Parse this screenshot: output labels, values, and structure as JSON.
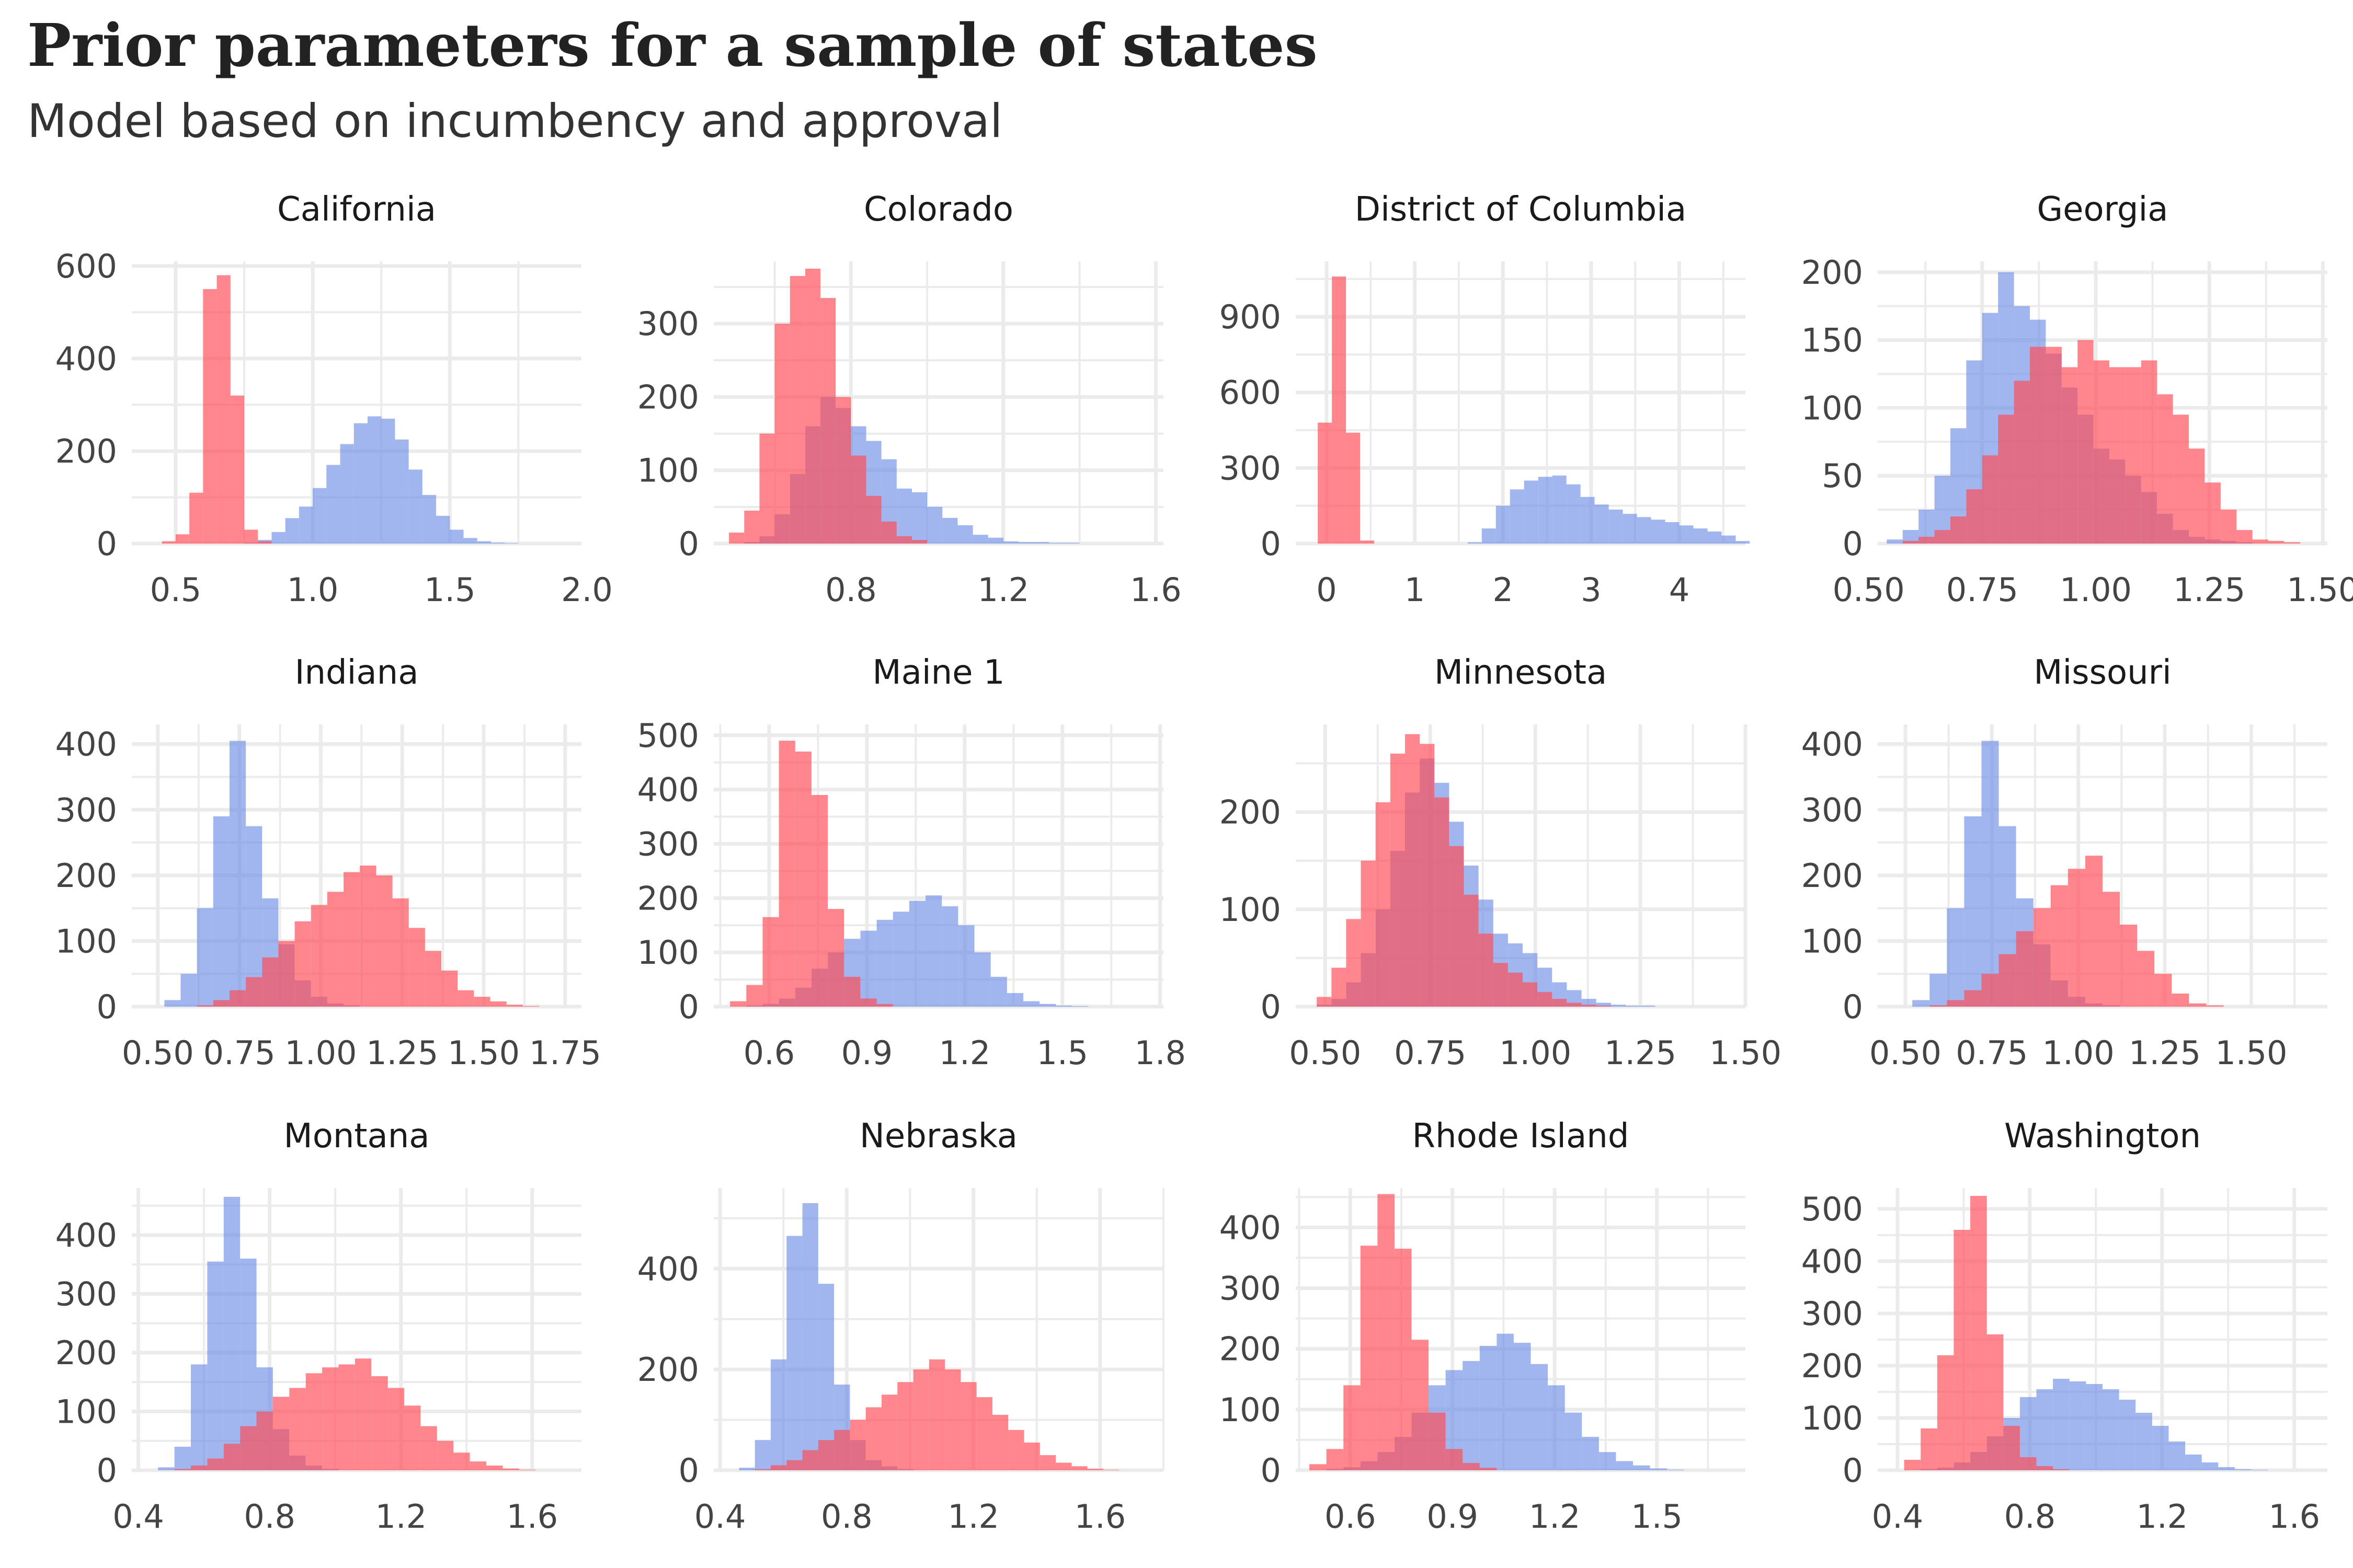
{
  "page": {
    "title": "Prior parameters for a sample of states",
    "subtitle": "Model based on incumbency and approval"
  },
  "colors": {
    "blue": "#6e8ee6",
    "red": "#ff4d55",
    "overlap": "#c33a5f"
  },
  "chart_data": [
    {
      "type": "histogram",
      "title": "California",
      "xlim": [
        0.34,
        1.98
      ],
      "ylim": [
        0,
        610
      ],
      "x_ticks": [
        0.5,
        1.0,
        1.5,
        2.0
      ],
      "x_tick_labels": [
        "0.5",
        "1.0",
        "1.5",
        "2.0"
      ],
      "y_ticks": [
        0,
        200,
        400,
        600
      ],
      "y_tick_labels": [
        "0",
        "200",
        "400",
        "600"
      ],
      "series": [
        {
          "color": "blue",
          "bin_start": 0.45,
          "bin_width": 0.05,
          "values": [
            0,
            0,
            0,
            0,
            0,
            0,
            2,
            8,
            25,
            55,
            80,
            120,
            170,
            215,
            260,
            275,
            270,
            225,
            160,
            105,
            60,
            30,
            12,
            5,
            2,
            1,
            0,
            0,
            0,
            0
          ]
        },
        {
          "color": "red",
          "bin_start": 0.45,
          "bin_width": 0.05,
          "values": [
            5,
            20,
            110,
            550,
            580,
            320,
            30,
            5,
            0,
            0,
            0,
            0,
            0,
            0,
            0,
            0,
            0,
            0,
            0,
            0,
            0,
            0,
            0,
            0,
            0,
            0,
            0,
            0,
            0,
            0
          ]
        }
      ]
    },
    {
      "type": "histogram",
      "title": "Colorado",
      "xlim": [
        0.44,
        1.62
      ],
      "ylim": [
        0,
        385
      ],
      "x_ticks": [
        0.8,
        1.2,
        1.6
      ],
      "x_tick_labels": [
        "0.8",
        "1.2",
        "1.6"
      ],
      "y_ticks": [
        0,
        100,
        200,
        300
      ],
      "y_tick_labels": [
        "0",
        "100",
        "200",
        "300"
      ],
      "series": [
        {
          "color": "blue",
          "bin_start": 0.48,
          "bin_width": 0.04,
          "values": [
            0,
            2,
            10,
            40,
            95,
            160,
            200,
            185,
            160,
            140,
            115,
            75,
            70,
            50,
            35,
            25,
            12,
            8,
            3,
            2,
            2,
            1,
            1,
            0,
            0,
            0
          ]
        },
        {
          "color": "red",
          "bin_start": 0.48,
          "bin_width": 0.04,
          "values": [
            15,
            45,
            150,
            300,
            365,
            375,
            335,
            200,
            120,
            65,
            30,
            10,
            5,
            0,
            0,
            0,
            0,
            0,
            0,
            0,
            0,
            0,
            0,
            0,
            0,
            0
          ]
        }
      ]
    },
    {
      "type": "histogram",
      "title": "District of Columbia",
      "xlim": [
        -0.35,
        4.75
      ],
      "ylim": [
        0,
        1120
      ],
      "x_ticks": [
        0,
        1,
        2,
        3,
        4
      ],
      "x_tick_labels": [
        "0",
        "1",
        "2",
        "3",
        "4"
      ],
      "y_ticks": [
        0,
        300,
        600,
        900
      ],
      "y_tick_labels": [
        "0",
        "300",
        "600",
        "900"
      ],
      "series": [
        {
          "color": "blue",
          "bin_start": 1.6,
          "bin_width": 0.16,
          "values": [
            5,
            60,
            150,
            215,
            250,
            265,
            270,
            235,
            185,
            155,
            135,
            118,
            105,
            95,
            85,
            72,
            60,
            48,
            32,
            10
          ]
        },
        {
          "color": "red",
          "bin_start": -0.1,
          "bin_width": 0.16,
          "values": [
            480,
            1060,
            440,
            12
          ]
        }
      ]
    },
    {
      "type": "histogram",
      "title": "Georgia",
      "xlim": [
        0.52,
        1.51
      ],
      "ylim": [
        0,
        208
      ],
      "x_ticks": [
        0.5,
        0.75,
        1.0,
        1.25,
        1.5
      ],
      "x_tick_labels": [
        "0.50",
        "0.75",
        "1.00",
        "1.25",
        "1.50"
      ],
      "y_ticks": [
        0,
        50,
        100,
        150,
        200
      ],
      "y_tick_labels": [
        "0",
        "50",
        "100",
        "150",
        "200"
      ],
      "series": [
        {
          "color": "blue",
          "bin_start": 0.54,
          "bin_width": 0.035,
          "values": [
            3,
            10,
            25,
            50,
            85,
            135,
            170,
            200,
            175,
            165,
            140,
            115,
            95,
            70,
            62,
            50,
            38,
            22,
            10,
            5,
            3,
            2,
            1,
            0,
            0,
            0,
            0
          ]
        },
        {
          "color": "red",
          "bin_start": 0.54,
          "bin_width": 0.035,
          "values": [
            0,
            2,
            5,
            10,
            20,
            40,
            65,
            95,
            120,
            145,
            145,
            130,
            150,
            135,
            130,
            130,
            135,
            110,
            95,
            70,
            45,
            25,
            10,
            3,
            2,
            1,
            0
          ]
        }
      ]
    },
    {
      "type": "histogram",
      "title": "Indiana",
      "xlim": [
        0.42,
        1.8
      ],
      "ylim": [
        0,
        430
      ],
      "x_ticks": [
        0.5,
        0.75,
        1.0,
        1.25,
        1.5,
        1.75
      ],
      "x_tick_labels": [
        "0.50",
        "0.75",
        "1.00",
        "1.25",
        "1.50",
        "1.75"
      ],
      "y_ticks": [
        0,
        100,
        200,
        300,
        400
      ],
      "y_tick_labels": [
        "0",
        "100",
        "200",
        "300",
        "400"
      ],
      "series": [
        {
          "color": "blue",
          "bin_start": 0.52,
          "bin_width": 0.05,
          "values": [
            10,
            50,
            150,
            290,
            405,
            275,
            165,
            95,
            40,
            15,
            5,
            2,
            0,
            0,
            0,
            0,
            0,
            0,
            0,
            0,
            0,
            0,
            0,
            0
          ]
        },
        {
          "color": "red",
          "bin_start": 0.52,
          "bin_width": 0.05,
          "values": [
            0,
            0,
            2,
            10,
            25,
            45,
            75,
            100,
            130,
            155,
            175,
            205,
            215,
            200,
            165,
            120,
            85,
            55,
            25,
            15,
            8,
            3,
            1,
            0
          ]
        }
      ]
    },
    {
      "type": "histogram",
      "title": "Maine 1",
      "xlim": [
        0.43,
        1.81
      ],
      "ylim": [
        0,
        520
      ],
      "x_ticks": [
        0.6,
        0.9,
        1.2,
        1.5,
        1.8
      ],
      "x_tick_labels": [
        "0.6",
        "0.9",
        "1.2",
        "1.5",
        "1.8"
      ],
      "y_ticks": [
        0,
        100,
        200,
        300,
        400,
        500
      ],
      "y_tick_labels": [
        "0",
        "100",
        "200",
        "300",
        "400",
        "500"
      ],
      "series": [
        {
          "color": "blue",
          "bin_start": 0.48,
          "bin_width": 0.05,
          "values": [
            0,
            2,
            5,
            15,
            35,
            70,
            100,
            125,
            140,
            160,
            175,
            195,
            205,
            185,
            150,
            100,
            55,
            25,
            10,
            5,
            2,
            1,
            0,
            0,
            0,
            0
          ]
        },
        {
          "color": "red",
          "bin_start": 0.48,
          "bin_width": 0.05,
          "values": [
            10,
            40,
            165,
            490,
            470,
            390,
            180,
            55,
            15,
            5,
            0,
            0,
            0,
            0,
            0,
            0,
            0,
            0,
            0,
            0,
            0,
            0,
            0,
            0,
            0,
            0
          ]
        }
      ]
    },
    {
      "type": "histogram",
      "title": "Minnesota",
      "xlim": [
        0.43,
        1.5
      ],
      "ylim": [
        0,
        290
      ],
      "x_ticks": [
        0.5,
        0.75,
        1.0,
        1.25,
        1.5
      ],
      "x_tick_labels": [
        "0.50",
        "0.75",
        "1.00",
        "1.25",
        "1.50"
      ],
      "y_ticks": [
        0,
        100,
        200
      ],
      "y_tick_labels": [
        "0",
        "100",
        "200"
      ],
      "series": [
        {
          "color": "blue",
          "bin_start": 0.48,
          "bin_width": 0.035,
          "values": [
            2,
            8,
            25,
            55,
            100,
            160,
            220,
            255,
            230,
            190,
            145,
            110,
            75,
            65,
            55,
            40,
            25,
            17,
            8,
            4,
            2,
            1,
            1,
            0,
            0,
            0,
            0,
            0
          ]
        },
        {
          "color": "red",
          "bin_start": 0.48,
          "bin_width": 0.035,
          "values": [
            10,
            40,
            90,
            150,
            210,
            260,
            280,
            270,
            215,
            165,
            115,
            75,
            45,
            35,
            25,
            15,
            8,
            4,
            2,
            1,
            0,
            0,
            0,
            0,
            0,
            0,
            0,
            0
          ]
        }
      ]
    },
    {
      "type": "histogram",
      "title": "Missouri",
      "xlim": [
        0.42,
        1.72
      ],
      "ylim": [
        0,
        430
      ],
      "x_ticks": [
        0.5,
        0.75,
        1.0,
        1.25,
        1.5
      ],
      "x_tick_labels": [
        "0.50",
        "0.75",
        "1.00",
        "1.25",
        "1.50"
      ],
      "y_ticks": [
        0,
        100,
        200,
        300,
        400
      ],
      "y_tick_labels": [
        "0",
        "100",
        "200",
        "300",
        "400"
      ],
      "series": [
        {
          "color": "blue",
          "bin_start": 0.52,
          "bin_width": 0.05,
          "values": [
            10,
            50,
            150,
            290,
            405,
            275,
            165,
            95,
            40,
            15,
            5,
            2,
            0,
            0,
            0,
            0,
            0,
            0,
            0,
            0,
            0,
            0
          ]
        },
        {
          "color": "red",
          "bin_start": 0.52,
          "bin_width": 0.05,
          "values": [
            0,
            2,
            10,
            25,
            50,
            80,
            115,
            150,
            185,
            210,
            230,
            175,
            125,
            85,
            50,
            20,
            5,
            2,
            0,
            0,
            0,
            0
          ]
        }
      ]
    },
    {
      "type": "histogram",
      "title": "Montana",
      "xlim": [
        0.38,
        1.75
      ],
      "ylim": [
        0,
        480
      ],
      "x_ticks": [
        0.4,
        0.8,
        1.2,
        1.6
      ],
      "x_tick_labels": [
        "0.4",
        "0.8",
        "1.2",
        "1.6"
      ],
      "y_ticks": [
        0,
        100,
        200,
        300,
        400
      ],
      "y_tick_labels": [
        "0",
        "100",
        "200",
        "300",
        "400"
      ],
      "series": [
        {
          "color": "blue",
          "bin_start": 0.46,
          "bin_width": 0.05,
          "values": [
            5,
            40,
            180,
            355,
            465,
            360,
            175,
            70,
            25,
            8,
            2,
            0,
            0,
            0,
            0,
            0,
            0,
            0,
            0,
            0,
            0,
            0,
            0,
            0,
            0,
            0
          ]
        },
        {
          "color": "red",
          "bin_start": 0.46,
          "bin_width": 0.05,
          "values": [
            0,
            2,
            8,
            20,
            45,
            75,
            100,
            125,
            140,
            165,
            175,
            180,
            190,
            160,
            140,
            110,
            75,
            50,
            30,
            15,
            8,
            3,
            1,
            0,
            0,
            0
          ]
        }
      ]
    },
    {
      "type": "histogram",
      "title": "Nebraska",
      "xlim": [
        0.38,
        1.8
      ],
      "ylim": [
        0,
        560
      ],
      "x_ticks": [
        0.4,
        0.8,
        1.2,
        1.6
      ],
      "x_tick_labels": [
        "0.4",
        "0.8",
        "1.2",
        "1.6"
      ],
      "y_ticks": [
        0,
        200,
        400
      ],
      "y_tick_labels": [
        "0",
        "200",
        "400"
      ],
      "series": [
        {
          "color": "blue",
          "bin_start": 0.46,
          "bin_width": 0.05,
          "values": [
            5,
            60,
            220,
            465,
            530,
            370,
            170,
            60,
            20,
            8,
            2,
            0,
            0,
            0,
            0,
            0,
            0,
            0,
            0,
            0,
            0,
            0,
            0,
            0,
            0,
            0,
            0
          ]
        },
        {
          "color": "red",
          "bin_start": 0.46,
          "bin_width": 0.05,
          "values": [
            0,
            2,
            10,
            20,
            40,
            60,
            80,
            100,
            125,
            150,
            175,
            200,
            220,
            200,
            175,
            145,
            110,
            80,
            55,
            30,
            15,
            8,
            3,
            1,
            0,
            0,
            0
          ]
        }
      ]
    },
    {
      "type": "histogram",
      "title": "Rhode Island",
      "xlim": [
        0.44,
        1.76
      ],
      "ylim": [
        0,
        465
      ],
      "x_ticks": [
        0.6,
        0.9,
        1.2,
        1.5
      ],
      "x_tick_labels": [
        "0.6",
        "0.9",
        "1.2",
        "1.5"
      ],
      "y_ticks": [
        0,
        100,
        200,
        300,
        400
      ],
      "y_tick_labels": [
        "0",
        "100",
        "200",
        "300",
        "400"
      ],
      "series": [
        {
          "color": "blue",
          "bin_start": 0.48,
          "bin_width": 0.05,
          "values": [
            0,
            2,
            5,
            15,
            30,
            55,
            95,
            140,
            165,
            180,
            205,
            225,
            210,
            175,
            140,
            95,
            55,
            30,
            15,
            8,
            3,
            1,
            0,
            0,
            0,
            0
          ]
        },
        {
          "color": "red",
          "bin_start": 0.48,
          "bin_width": 0.05,
          "values": [
            10,
            35,
            140,
            370,
            455,
            365,
            215,
            95,
            35,
            12,
            4,
            0,
            0,
            0,
            0,
            0,
            0,
            0,
            0,
            0,
            0,
            0,
            0,
            0,
            0,
            0
          ]
        }
      ]
    },
    {
      "type": "histogram",
      "title": "Washington",
      "xlim": [
        0.34,
        1.7
      ],
      "ylim": [
        0,
        540
      ],
      "x_ticks": [
        0.4,
        0.8,
        1.2,
        1.6
      ],
      "x_tick_labels": [
        "0.4",
        "0.8",
        "1.2",
        "1.6"
      ],
      "y_ticks": [
        0,
        100,
        200,
        300,
        400,
        500
      ],
      "y_tick_labels": [
        "0",
        "100",
        "200",
        "300",
        "400",
        "500"
      ],
      "series": [
        {
          "color": "blue",
          "bin_start": 0.42,
          "bin_width": 0.05,
          "values": [
            0,
            2,
            5,
            15,
            35,
            65,
            100,
            140,
            155,
            175,
            170,
            165,
            155,
            135,
            110,
            85,
            55,
            30,
            15,
            6,
            2,
            1,
            0,
            0,
            0
          ]
        },
        {
          "color": "red",
          "bin_start": 0.42,
          "bin_width": 0.05,
          "values": [
            20,
            80,
            220,
            460,
            525,
            260,
            85,
            25,
            8,
            2,
            0,
            0,
            0,
            0,
            0,
            0,
            0,
            0,
            0,
            0,
            0,
            0,
            0,
            0,
            0
          ]
        }
      ]
    }
  ]
}
